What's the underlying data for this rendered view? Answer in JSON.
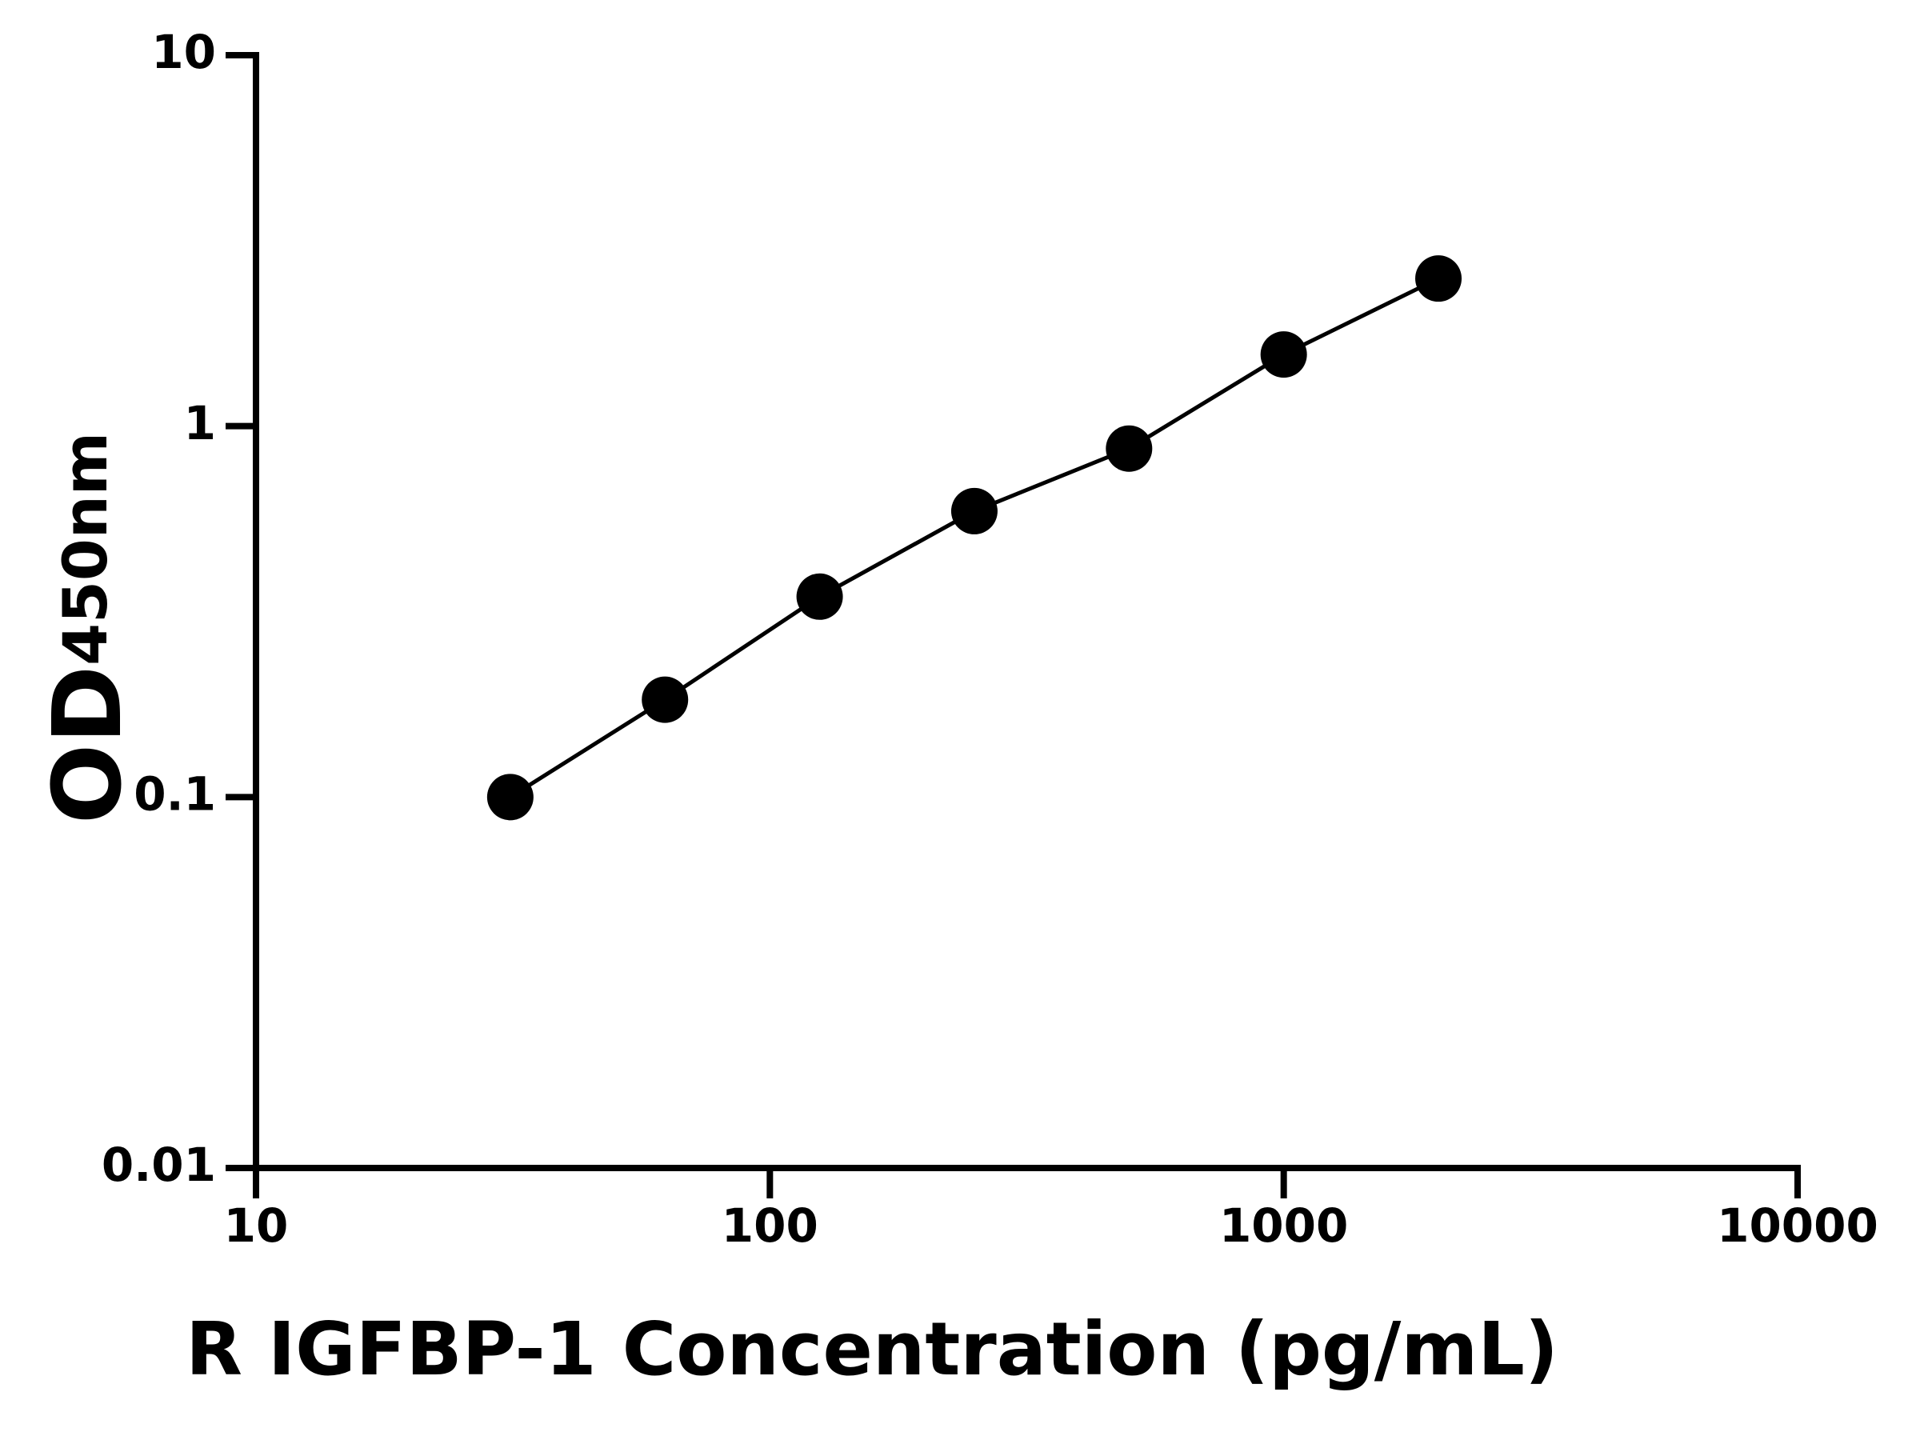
{
  "chart_data": {
    "type": "scatter",
    "xlabel": "R IGFBP-1 Concentration (pg/mL)",
    "ylabel": "OD",
    "ylabel_subscript": "450nm",
    "x": [
      31.25,
      62.5,
      125,
      250,
      500,
      1000,
      2000
    ],
    "series": [
      {
        "color": "#000000",
        "values": [
          0.1,
          0.183,
          0.347,
          0.59,
          0.87,
          1.56,
          2.5
        ]
      }
    ],
    "xlim": [
      10,
      10000
    ],
    "xticks": [
      10,
      100,
      1000,
      10000
    ],
    "ylim": [
      0.01,
      10
    ],
    "yticks": [
      0.01,
      0.1,
      1,
      10
    ],
    "xscale": "log",
    "yscale": "log",
    "connect_points": true
  }
}
